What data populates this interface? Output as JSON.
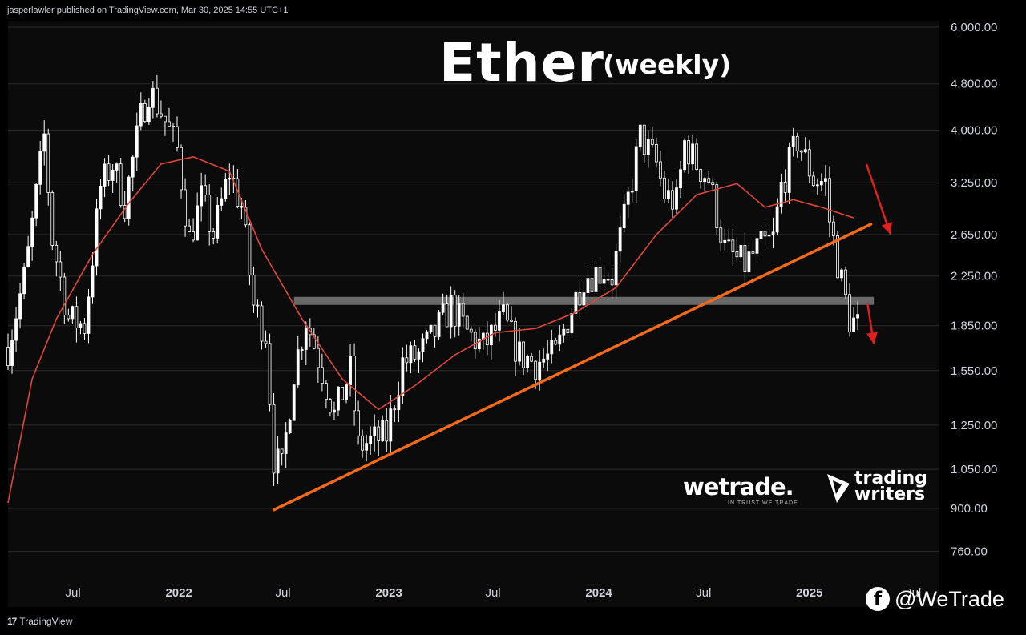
{
  "header": {
    "published": "jasperlawler published on TradingView.com, Mar 30, 2025 14:55 UTC+1"
  },
  "footer": {
    "platform": "TradingView",
    "platform_icon": "tradingview-logo-icon"
  },
  "overlay": {
    "title": "Ether",
    "subtitle": "(weekly)",
    "brand_wetrade": "wetrade.",
    "brand_wetrade_tagline": "IN TRUST WE TRADE",
    "brand_tw_line1": "trading",
    "brand_tw_line2": "writers",
    "social_icon": "facebook-icon",
    "social_handle": "@WeTrade"
  },
  "colors": {
    "background": "#0b0b0b",
    "grid": "#2a2a2a",
    "candle": "#ffffff",
    "moving_average": "#e0463c",
    "trendline": "#f26a1b",
    "support_zone": "#7a7a7a",
    "arrow": "#e01f1f"
  },
  "chart_data": {
    "type": "candlestick",
    "timeframe": "weekly",
    "title": "Ether",
    "subtitle": "(weekly)",
    "y_scale": "log",
    "ylim": [
      700,
      6200
    ],
    "y_ticks": [
      "6,000.00",
      "4,800.00",
      "4,000.00",
      "3,250.00",
      "2,650.00",
      "2,250.00",
      "1,850.00",
      "1,550.00",
      "1,250.00",
      "1,050.00",
      "900.00",
      "760.00"
    ],
    "y_tick_values": [
      6000,
      4800,
      4000,
      3250,
      2650,
      2250,
      1850,
      1550,
      1250,
      1050,
      900,
      760
    ],
    "x_ticks": [
      {
        "label": "Jul",
        "date": "2021-07-01",
        "year": false
      },
      {
        "label": "2022",
        "date": "2022-01-01",
        "year": true
      },
      {
        "label": "Jul",
        "date": "2022-07-01",
        "year": false
      },
      {
        "label": "2023",
        "date": "2023-01-01",
        "year": true
      },
      {
        "label": "Jul",
        "date": "2023-07-01",
        "year": false
      },
      {
        "label": "2024",
        "date": "2024-01-01",
        "year": true
      },
      {
        "label": "Jul",
        "date": "2024-07-01",
        "year": false
      },
      {
        "label": "2025",
        "date": "2025-01-01",
        "year": true
      },
      {
        "label": "Jul",
        "date": "2025-07-01",
        "year": false
      }
    ],
    "x_range": [
      "2021-03-10",
      "2025-08-15"
    ],
    "price_path": [
      [
        "2021-03-10",
        1700
      ],
      [
        "2021-04-10",
        2300
      ],
      [
        "2021-05-12",
        3900
      ],
      [
        "2021-05-26",
        2600
      ],
      [
        "2021-06-23",
        1900
      ],
      [
        "2021-07-21",
        1850
      ],
      [
        "2021-08-18",
        3200
      ],
      [
        "2021-09-08",
        3500
      ],
      [
        "2021-09-29",
        3000
      ],
      [
        "2021-10-27",
        4200
      ],
      [
        "2021-11-10",
        4700
      ],
      [
        "2021-12-01",
        4300
      ],
      [
        "2021-12-29",
        3700
      ],
      [
        "2022-01-19",
        2600
      ],
      [
        "2022-02-09",
        3050
      ],
      [
        "2022-03-02",
        2650
      ],
      [
        "2022-03-30",
        3400
      ],
      [
        "2022-04-20",
        2950
      ],
      [
        "2022-05-11",
        2000
      ],
      [
        "2022-06-01",
        1800
      ],
      [
        "2022-06-15",
        1100
      ],
      [
        "2022-06-29",
        1050
      ],
      [
        "2022-07-20",
        1550
      ],
      [
        "2022-08-10",
        1900
      ],
      [
        "2022-09-07",
        1550
      ],
      [
        "2022-09-28",
        1300
      ],
      [
        "2022-10-26",
        1550
      ],
      [
        "2022-11-09",
        1150
      ],
      [
        "2022-12-28",
        1200
      ],
      [
        "2023-01-25",
        1600
      ],
      [
        "2023-02-22",
        1650
      ],
      [
        "2023-03-15",
        1750
      ],
      [
        "2023-04-19",
        2000
      ],
      [
        "2023-05-17",
        1800
      ],
      [
        "2023-06-14",
        1700
      ],
      [
        "2023-07-19",
        1900
      ],
      [
        "2023-08-16",
        1650
      ],
      [
        "2023-09-13",
        1600
      ],
      [
        "2023-10-18",
        1650
      ],
      [
        "2023-11-08",
        1900
      ],
      [
        "2023-12-06",
        2250
      ],
      [
        "2024-01-10",
        2300
      ],
      [
        "2024-01-24",
        2250
      ],
      [
        "2024-02-14",
        2800
      ],
      [
        "2024-03-13",
        3900
      ],
      [
        "2024-04-10",
        3500
      ],
      [
        "2024-04-24",
        3100
      ],
      [
        "2024-05-15",
        3000
      ],
      [
        "2024-05-29",
        3800
      ],
      [
        "2024-06-19",
        3500
      ],
      [
        "2024-07-10",
        3300
      ],
      [
        "2024-08-07",
        2500
      ],
      [
        "2024-08-28",
        2400
      ],
      [
        "2024-09-11",
        2350
      ],
      [
        "2024-10-02",
        2500
      ],
      [
        "2024-10-30",
        2600
      ],
      [
        "2024-11-13",
        3200
      ],
      [
        "2024-12-11",
        3850
      ],
      [
        "2025-01-08",
        3300
      ],
      [
        "2025-01-29",
        3250
      ],
      [
        "2025-02-05",
        2800
      ],
      [
        "2025-02-26",
        2200
      ],
      [
        "2025-03-12",
        1900
      ],
      [
        "2025-03-26",
        1850
      ]
    ],
    "moving_average": {
      "name": "",
      "points": [
        [
          "2021-03-10",
          920
        ],
        [
          "2021-04-21",
          1500
        ],
        [
          "2021-06-02",
          1900
        ],
        [
          "2021-08-04",
          2450
        ],
        [
          "2021-10-06",
          3000
        ],
        [
          "2021-12-01",
          3500
        ],
        [
          "2022-01-26",
          3600
        ],
        [
          "2022-03-30",
          3400
        ],
        [
          "2022-05-25",
          2500
        ],
        [
          "2022-08-03",
          1900
        ],
        [
          "2022-10-12",
          1500
        ],
        [
          "2022-12-14",
          1330
        ],
        [
          "2023-02-15",
          1460
        ],
        [
          "2023-04-26",
          1650
        ],
        [
          "2023-07-05",
          1800
        ],
        [
          "2023-09-13",
          1830
        ],
        [
          "2023-11-22",
          1950
        ],
        [
          "2024-01-31",
          2150
        ],
        [
          "2024-04-10",
          2650
        ],
        [
          "2024-06-19",
          3100
        ],
        [
          "2024-08-28",
          3240
        ],
        [
          "2024-10-16",
          2950
        ],
        [
          "2024-12-04",
          3040
        ],
        [
          "2025-01-22",
          2950
        ],
        [
          "2025-03-19",
          2830
        ]
      ]
    },
    "annotations": {
      "trendline": {
        "from": [
          "2022-06-15",
          895
        ],
        "to": [
          "2025-04-18",
          2760
        ]
      },
      "support_zone": {
        "from": "2022-07-20",
        "to": "2025-04-23",
        "price": 2040
      },
      "arrows": [
        {
          "from": [
            "2025-04-10",
            3500
          ],
          "to": [
            "2025-05-22",
            2650
          ]
        },
        {
          "from": [
            "2025-04-12",
            2020
          ],
          "to": [
            "2025-04-23",
            1720
          ]
        }
      ]
    }
  }
}
